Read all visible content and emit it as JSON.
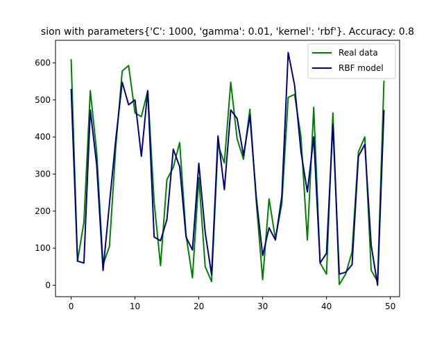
{
  "chart_data": {
    "type": "line",
    "title": "sion with parameters{'C': 1000, 'gamma': 0.01, 'kernel': 'rbf'}. Accuracy: 0.8",
    "xlabel": "",
    "ylabel": "",
    "xlim": [
      -2.45,
      51.45
    ],
    "ylim": [
      -31,
      661
    ],
    "xticks": [
      0,
      10,
      20,
      30,
      40,
      50
    ],
    "yticks": [
      0,
      100,
      200,
      300,
      400,
      500,
      600
    ],
    "grid": false,
    "legend_position": "top-right",
    "x": [
      0,
      1,
      2,
      3,
      4,
      5,
      6,
      7,
      8,
      9,
      10,
      11,
      12,
      13,
      14,
      15,
      16,
      17,
      18,
      19,
      20,
      21,
      22,
      23,
      24,
      25,
      26,
      27,
      28,
      29,
      30,
      31,
      32,
      33,
      34,
      35,
      36,
      37,
      38,
      39,
      40,
      41,
      42,
      43,
      44,
      45,
      46,
      47,
      48,
      49
    ],
    "series": [
      {
        "name": "Real data",
        "color": "#008000",
        "values": [
          610,
          65,
          170,
          525,
          360,
          55,
          105,
          375,
          578,
          593,
          465,
          455,
          525,
          225,
          53,
          285,
          318,
          385,
          135,
          20,
          290,
          50,
          10,
          380,
          330,
          548,
          395,
          340,
          475,
          225,
          15,
          233,
          125,
          220,
          507,
          515,
          400,
          122,
          480,
          60,
          30,
          465,
          2,
          30,
          90,
          360,
          400,
          40,
          10,
          552
        ]
      },
      {
        "name": "RBF model",
        "color": "#000080",
        "values": [
          530,
          65,
          60,
          473,
          325,
          40,
          220,
          395,
          548,
          487,
          500,
          348,
          525,
          130,
          120,
          177,
          367,
          320,
          130,
          95,
          329,
          142,
          28,
          403,
          258,
          473,
          450,
          350,
          458,
          237,
          80,
          155,
          122,
          240,
          628,
          540,
          360,
          252,
          400,
          60,
          86,
          435,
          30,
          35,
          55,
          348,
          380,
          108,
          0,
          473
        ]
      }
    ]
  }
}
